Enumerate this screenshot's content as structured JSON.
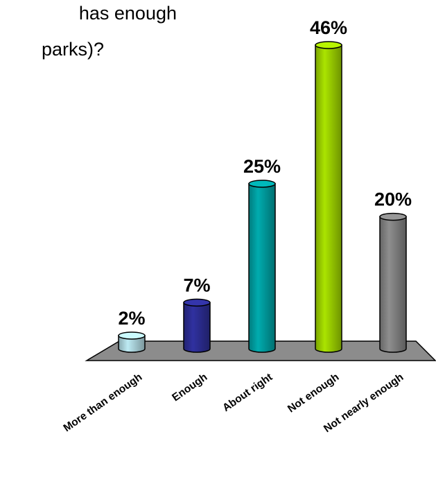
{
  "title_lines": [
    "has enough",
    "parks)?"
  ],
  "chart_data": {
    "type": "bar",
    "categories": [
      "More than enough",
      "Enough",
      "About right",
      "Not enough",
      "Not nearly enough"
    ],
    "values": [
      2,
      7,
      25,
      46,
      20
    ],
    "data_labels": [
      "2%",
      "7%",
      "25%",
      "46%",
      "20%"
    ],
    "unit": "%",
    "ylim": [
      0,
      46
    ],
    "grid": false,
    "legend": "none",
    "colors": [
      "#a9d1d9",
      "#2b2c8f",
      "#009a9c",
      "#99cc00",
      "#7f7f7f"
    ],
    "floor_color": "#8c8c8c"
  }
}
